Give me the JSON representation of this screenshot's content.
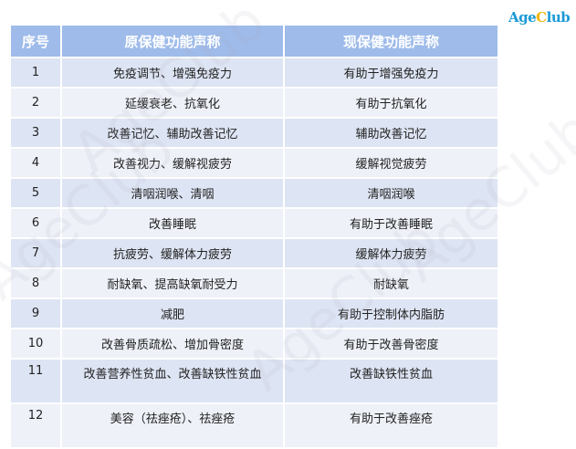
{
  "logo": {
    "part1": "Age",
    "part2": "C",
    "part3": "lub"
  },
  "watermark": "AgeClub",
  "headers": [
    "序号",
    "原保健功能声称",
    "现保健功能声称"
  ],
  "rows": [
    [
      "1",
      "免疫调节、增强免疫力",
      "有助于增强免疫力"
    ],
    [
      "2",
      "延缓衰老、抗氧化",
      "有助于抗氧化"
    ],
    [
      "3",
      "改善记忆、辅助改善记忆",
      "辅助改善记忆"
    ],
    [
      "4",
      "改善视力、缓解视疲劳",
      "缓解视觉疲劳"
    ],
    [
      "5",
      "清咽润喉、清咽",
      "清咽润喉"
    ],
    [
      "6",
      "改善睡眠",
      "有助于改善睡眠"
    ],
    [
      "7",
      "抗疲劳、缓解体力疲劳",
      "缓解体力疲劳"
    ],
    [
      "8",
      "耐缺氧、提高缺氧耐受力",
      "耐缺氧"
    ],
    [
      "9",
      "减肥",
      "有助于控制体内脂肪"
    ],
    [
      "10",
      "改善骨质疏松、增加骨密度",
      "有助于改善骨密度"
    ],
    [
      "11",
      "改善营养性贫血、改善缺铁性贫血",
      "改善缺铁性贫血"
    ],
    [
      "12",
      "美容（祛痤疮）、祛痤疮",
      "有助于改善痤疮"
    ]
  ]
}
